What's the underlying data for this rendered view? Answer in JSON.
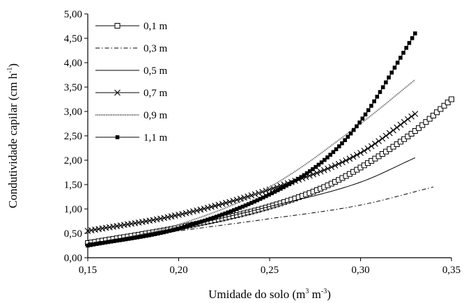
{
  "chart_data": {
    "type": "line",
    "xlabel": "Umidade do solo (m³ m⁻³)",
    "xlabel_parts": {
      "base": "Umidade do solo (m",
      "sup1": "3",
      "mid": " m",
      "sup2": "-3",
      "end": ")"
    },
    "ylabel": "Condutividade capilar (cm h⁻¹)",
    "ylabel_parts": {
      "base": "Condutividade capilar (cm h",
      "sup": "-1",
      "end": ")"
    },
    "xlim": [
      0.15,
      0.35
    ],
    "ylim": [
      0,
      5
    ],
    "x_ticks": [
      0.15,
      0.2,
      0.25,
      0.3,
      0.35
    ],
    "x_tick_labels": [
      "0,15",
      "0,20",
      "0,25",
      "0,30",
      "0,35"
    ],
    "y_ticks": [
      0,
      0.5,
      1,
      1.5,
      2,
      2.5,
      3,
      3.5,
      4,
      4.5,
      5
    ],
    "y_tick_labels": [
      "0,00",
      "0,50",
      "1,00",
      "1,50",
      "2,00",
      "2,50",
      "3,00",
      "3,50",
      "4,00",
      "4,50",
      "5,00"
    ],
    "grid": false,
    "legend_position": "top-left",
    "series": [
      {
        "name": "0,1 m",
        "marker": "open-square",
        "line": "solid",
        "color": "#000000",
        "x": [
          0.15,
          0.2,
          0.25,
          0.28,
          0.3,
          0.33,
          0.35
        ],
        "y": [
          0.3,
          0.62,
          1.05,
          1.45,
          1.85,
          2.6,
          3.25
        ]
      },
      {
        "name": "0,3 m",
        "marker": "none",
        "line": "dash-dot",
        "color": "#000000",
        "x": [
          0.15,
          0.2,
          0.25,
          0.3,
          0.34
        ],
        "y": [
          0.3,
          0.55,
          0.8,
          1.08,
          1.45
        ]
      },
      {
        "name": "0,5 m",
        "marker": "none",
        "line": "solid",
        "color": "#000000",
        "x": [
          0.15,
          0.2,
          0.25,
          0.3,
          0.33
        ],
        "y": [
          0.28,
          0.62,
          1.05,
          1.55,
          2.05
        ]
      },
      {
        "name": "0,7 m",
        "marker": "cross",
        "line": "solid",
        "color": "#000000",
        "x": [
          0.15,
          0.2,
          0.25,
          0.3,
          0.33
        ],
        "y": [
          0.55,
          0.88,
          1.4,
          2.15,
          2.95
        ]
      },
      {
        "name": "0,9 m",
        "marker": "none",
        "line": "dotted-thick",
        "color": "#777777",
        "x": [
          0.15,
          0.2,
          0.25,
          0.3,
          0.33
        ],
        "y": [
          0.25,
          0.68,
          1.45,
          2.75,
          3.65
        ]
      },
      {
        "name": "1,1 m",
        "marker": "filled-square",
        "line": "solid",
        "color": "#000000",
        "x": [
          0.15,
          0.2,
          0.25,
          0.28,
          0.3,
          0.33
        ],
        "y": [
          0.25,
          0.6,
          1.3,
          2.0,
          2.8,
          4.6
        ]
      }
    ]
  }
}
